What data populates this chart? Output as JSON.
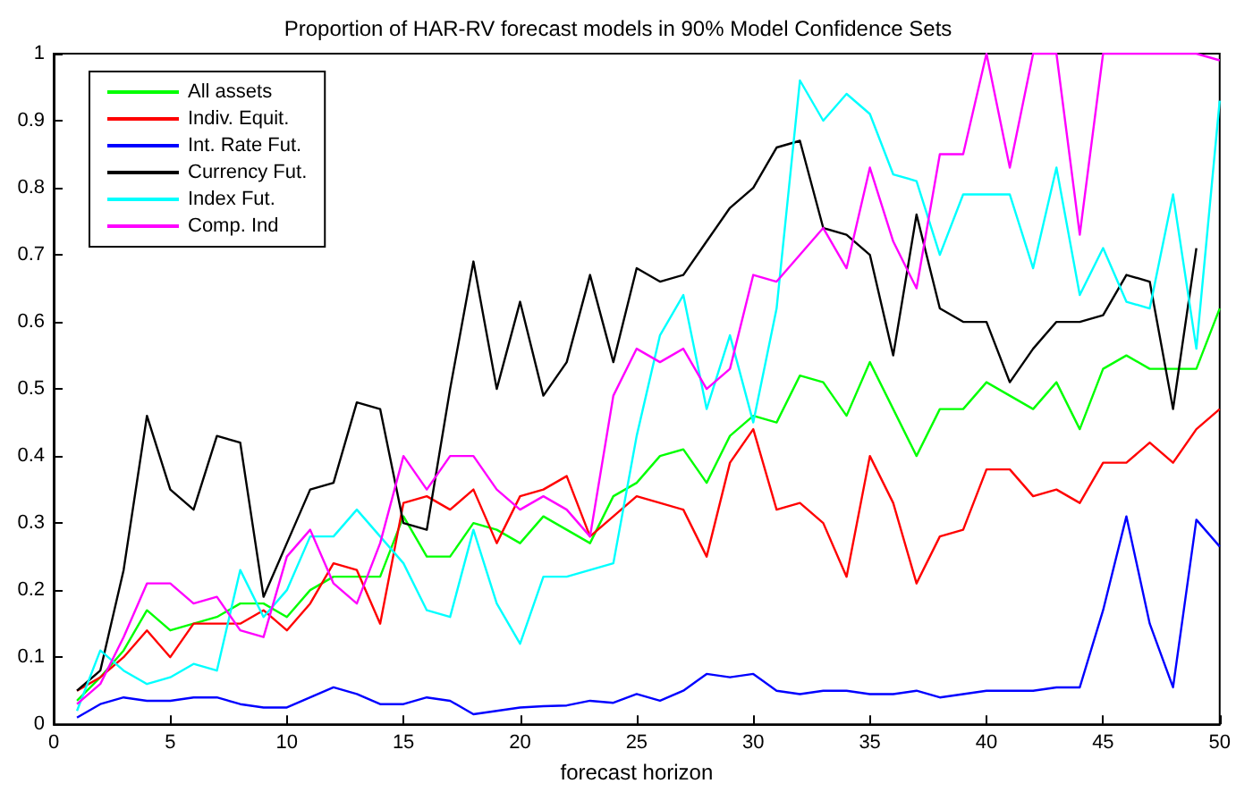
{
  "chart_data": {
    "type": "line",
    "title": "Proportion of HAR-RV forecast models in 90% Model Confidence Sets",
    "xlabel": "forecast horizon",
    "x": [
      1,
      2,
      3,
      4,
      5,
      6,
      7,
      8,
      9,
      10,
      11,
      12,
      13,
      14,
      15,
      16,
      17,
      18,
      19,
      20,
      21,
      22,
      23,
      24,
      25,
      26,
      27,
      28,
      29,
      30,
      31,
      32,
      33,
      34,
      35,
      36,
      37,
      38,
      39,
      40,
      41,
      42,
      43,
      44,
      45,
      46,
      47,
      48,
      49,
      50
    ],
    "xlim": [
      0,
      50
    ],
    "xticks": [
      0,
      5,
      10,
      15,
      20,
      25,
      30,
      35,
      40,
      45,
      50
    ],
    "ylim": [
      0,
      1
    ],
    "yticks": [
      0,
      0.1,
      0.2,
      0.3,
      0.4,
      0.5,
      0.6,
      0.7,
      0.8,
      0.9,
      1
    ],
    "grid": false,
    "legend": "top left",
    "marker": "none",
    "line_style": "solid",
    "series": [
      {
        "name": "All assets",
        "color": "#00ff00",
        "values": [
          0.035,
          0.07,
          0.11,
          0.17,
          0.14,
          0.15,
          0.16,
          0.18,
          0.18,
          0.16,
          0.2,
          0.22,
          0.22,
          0.22,
          0.31,
          0.25,
          0.25,
          0.3,
          0.29,
          0.27,
          0.31,
          0.29,
          0.27,
          0.34,
          0.36,
          0.4,
          0.41,
          0.36,
          0.43,
          0.46,
          0.45,
          0.52,
          0.51,
          0.46,
          0.54,
          0.47,
          0.4,
          0.47,
          0.47,
          0.51,
          0.49,
          0.47,
          0.51,
          0.44,
          0.53,
          0.55,
          0.53,
          0.53,
          0.53,
          0.62
        ]
      },
      {
        "name": "Indiv. Equit.",
        "color": "#ff0000",
        "values": [
          0.05,
          0.07,
          0.1,
          0.14,
          0.1,
          0.15,
          0.15,
          0.15,
          0.17,
          0.14,
          0.18,
          0.24,
          0.23,
          0.15,
          0.33,
          0.34,
          0.32,
          0.35,
          0.27,
          0.34,
          0.35,
          0.37,
          0.28,
          0.31,
          0.34,
          0.33,
          0.32,
          0.25,
          0.39,
          0.44,
          0.32,
          0.33,
          0.3,
          0.22,
          0.4,
          0.33,
          0.21,
          0.28,
          0.29,
          0.38,
          0.38,
          0.34,
          0.35,
          0.33,
          0.39,
          0.39,
          0.42,
          0.39,
          0.44,
          0.47
        ]
      },
      {
        "name": "Int. Rate Fut.",
        "color": "#0000ff",
        "values": [
          0.01,
          0.03,
          0.04,
          0.035,
          0.035,
          0.04,
          0.04,
          0.03,
          0.025,
          0.025,
          0.04,
          0.055,
          0.045,
          0.03,
          0.03,
          0.04,
          0.035,
          0.015,
          0.02,
          0.025,
          0.027,
          0.028,
          0.035,
          0.032,
          0.045,
          0.035,
          0.05,
          0.075,
          0.07,
          0.075,
          0.05,
          0.045,
          0.05,
          0.05,
          0.045,
          0.045,
          0.05,
          0.04,
          0.045,
          0.05,
          0.05,
          0.05,
          0.055,
          0.055,
          0.17,
          0.31,
          0.15,
          0.055,
          0.305,
          0.265
        ]
      },
      {
        "name": "Currency Fut.",
        "color": "#000000",
        "values": [
          0.05,
          0.08,
          0.23,
          0.46,
          0.35,
          0.32,
          0.43,
          0.42,
          0.19,
          0.27,
          0.35,
          0.36,
          0.48,
          0.47,
          0.3,
          0.29,
          0.5,
          0.69,
          0.5,
          0.63,
          0.49,
          0.54,
          0.67,
          0.54,
          0.68,
          0.66,
          0.67,
          0.72,
          0.77,
          0.8,
          0.86,
          0.87,
          0.74,
          0.73,
          0.7,
          0.55,
          0.76,
          0.62,
          0.6,
          0.6,
          0.51,
          0.56,
          0.6,
          0.6,
          0.61,
          0.67,
          0.66,
          0.47,
          0.71,
          null
        ]
      },
      {
        "name": "Index Fut.",
        "color": "#00ffff",
        "values": [
          0.02,
          0.11,
          0.08,
          0.06,
          0.07,
          0.09,
          0.08,
          0.23,
          0.16,
          0.2,
          0.28,
          0.28,
          0.32,
          0.28,
          0.24,
          0.17,
          0.16,
          0.29,
          0.18,
          0.12,
          0.22,
          0.22,
          0.23,
          0.24,
          0.43,
          0.58,
          0.64,
          0.47,
          0.58,
          0.45,
          0.62,
          0.96,
          0.9,
          0.94,
          0.91,
          0.82,
          0.81,
          0.7,
          0.79,
          0.79,
          0.79,
          0.68,
          0.83,
          0.64,
          0.71,
          0.63,
          0.62,
          0.79,
          0.56,
          0.93
        ]
      },
      {
        "name": "Comp. Ind",
        "color": "#ff00ff",
        "values": [
          0.03,
          0.06,
          0.13,
          0.21,
          0.21,
          0.18,
          0.19,
          0.14,
          0.13,
          0.25,
          0.29,
          0.21,
          0.18,
          0.27,
          0.4,
          0.35,
          0.4,
          0.4,
          0.35,
          0.32,
          0.34,
          0.32,
          0.28,
          0.49,
          0.56,
          0.54,
          0.56,
          0.5,
          0.53,
          0.67,
          0.66,
          0.7,
          0.74,
          0.68,
          0.83,
          0.72,
          0.65,
          0.85,
          0.85,
          1.0,
          0.83,
          1.0,
          1.0,
          0.73,
          1.0,
          1.0,
          1.0,
          1.0,
          1.0,
          0.99
        ]
      }
    ]
  }
}
